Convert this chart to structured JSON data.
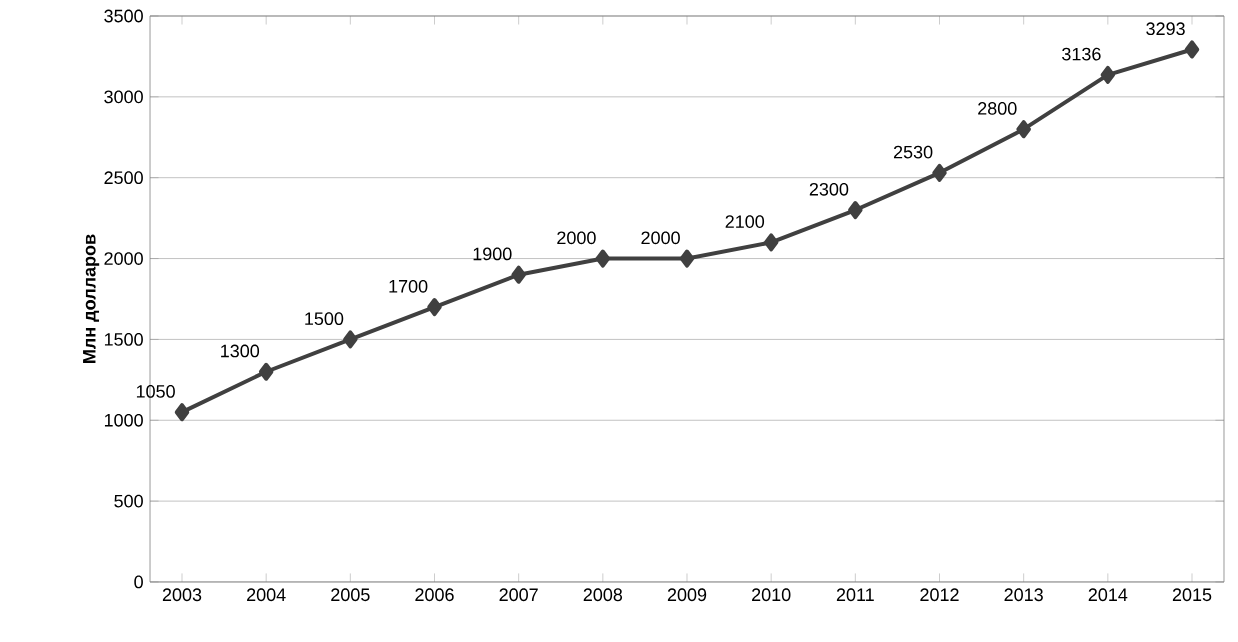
{
  "chart_data": {
    "type": "line",
    "ylabel": "Млн долларов",
    "categories": [
      "2003",
      "2004",
      "2005",
      "2006",
      "2007",
      "2008",
      "2009",
      "2010",
      "2011",
      "2012",
      "2013",
      "2014",
      "2015"
    ],
    "values": [
      1050,
      1300,
      1500,
      1700,
      1900,
      2000,
      2000,
      2100,
      2300,
      2530,
      2800,
      3136,
      3293
    ],
    "color": "#404040",
    "ylim": [
      0,
      3500
    ],
    "yticks": [
      0,
      500,
      1000,
      1500,
      2000,
      2500,
      3000,
      3500
    ],
    "grid": "y",
    "marker": "diamond",
    "line_style": "solid",
    "data_labels": true
  }
}
